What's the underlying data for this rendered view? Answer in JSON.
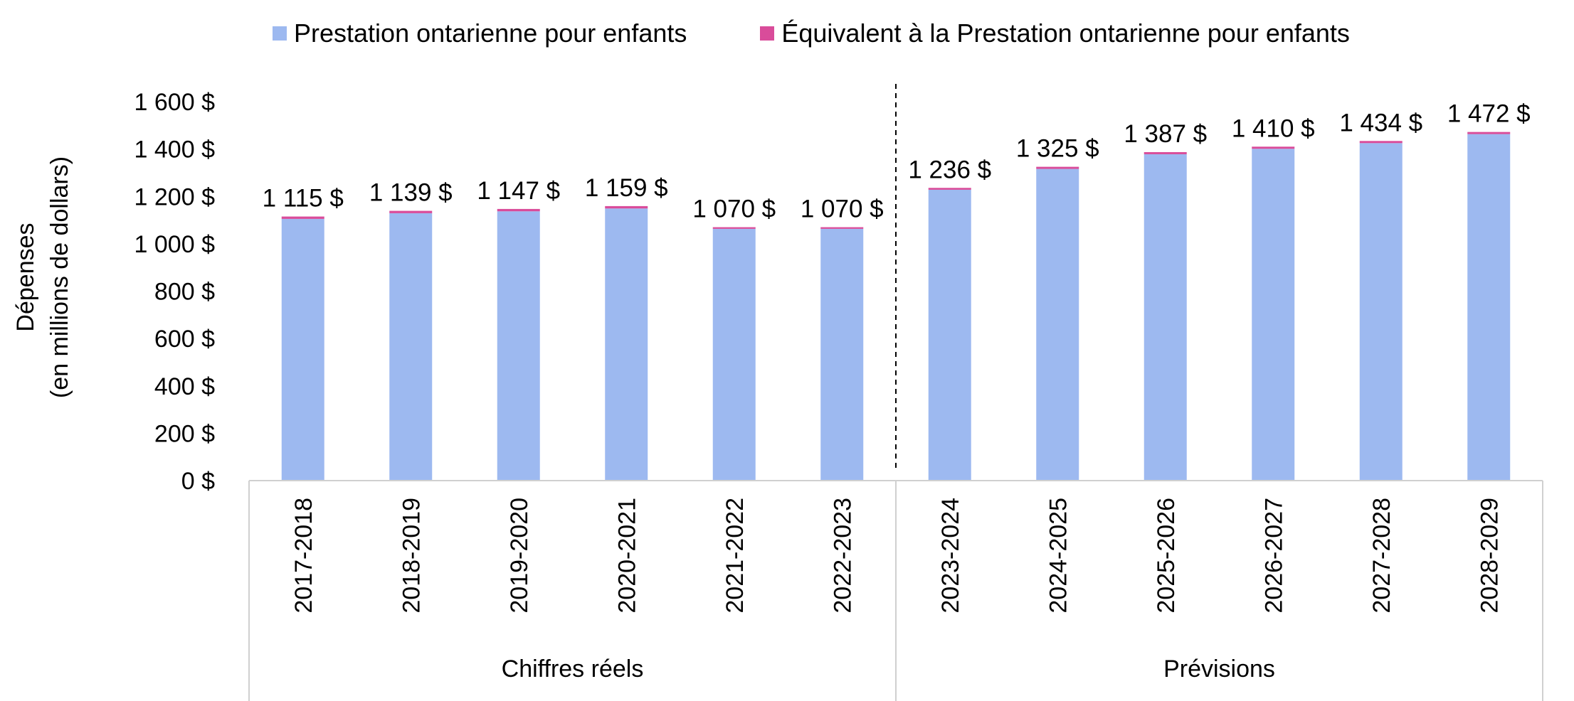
{
  "chart_data": {
    "type": "bar",
    "stacked": true,
    "title": "",
    "ylabel_lines": [
      "Dépenses",
      "(en millions de dollars)"
    ],
    "xlabel": "",
    "ylim": [
      0,
      1600
    ],
    "ytick_values": [
      0,
      200,
      400,
      600,
      800,
      1000,
      1200,
      1400,
      1600
    ],
    "yticks": [
      "0 $",
      "200 $",
      "400 $",
      "600 $",
      "800 $",
      "1 000 $",
      "1 200 $",
      "1 400 $",
      "1 600 $"
    ],
    "categories": [
      "2017-2018",
      "2018-2019",
      "2019-2020",
      "2020-2021",
      "2021-2022",
      "2022-2023",
      "2023-2024",
      "2024-2025",
      "2025-2026",
      "2026-2027",
      "2027-2028",
      "2028-2029"
    ],
    "groups": [
      {
        "label": "Chiffres réels",
        "count": 6
      },
      {
        "label": "Prévisions",
        "count": 6
      }
    ],
    "series": [
      {
        "name": "Prestation ontarienne pour enfants",
        "color": "#9db9f0",
        "values": [
          1105,
          1129,
          1137,
          1149,
          1063,
          1063,
          1228,
          1316,
          1378,
          1401,
          1425,
          1463
        ]
      },
      {
        "name": "Équivalent à la Prestation ontarienne pour enfants",
        "color": "#d94c9a",
        "values": [
          10,
          10,
          10,
          10,
          7,
          7,
          8,
          9,
          9,
          9,
          9,
          9
        ]
      }
    ],
    "totals": [
      "1 115 $",
      "1 139 $",
      "1 147 $",
      "1 159 $",
      "1 070 $",
      "1 070 $",
      "1 236 $",
      "1 325 $",
      "1 387 $",
      "1 410 $",
      "1 434 $",
      "1 472 $"
    ],
    "legend_position": "top",
    "grid": false
  }
}
